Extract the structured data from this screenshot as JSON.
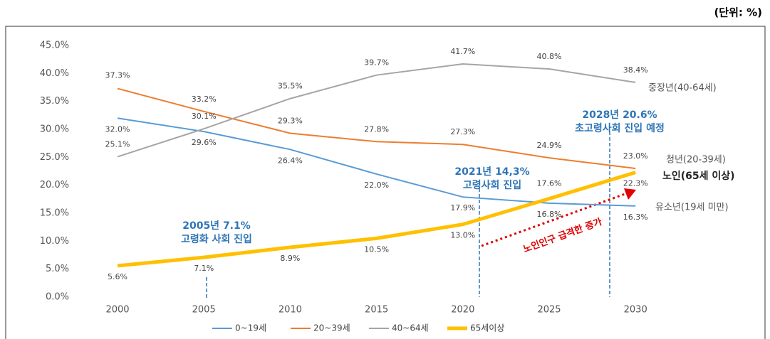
{
  "chart_data": {
    "type": "line",
    "unit_label": "(단위: %)",
    "categories": [
      "2000",
      "2005",
      "2010",
      "2015",
      "2020",
      "2025",
      "2030"
    ],
    "ylim": [
      0,
      45
    ],
    "yticks": [
      {
        "value": 0,
        "label": "0.0%"
      },
      {
        "value": 5,
        "label": "5.0%"
      },
      {
        "value": 10,
        "label": "10.0%"
      },
      {
        "value": 15,
        "label": "15.0%"
      },
      {
        "value": 20,
        "label": "20.0%"
      },
      {
        "value": 25,
        "label": "25.0%"
      },
      {
        "value": 30,
        "label": "30.0%"
      },
      {
        "value": 35,
        "label": "35.0%"
      },
      {
        "value": 40,
        "label": "40.0%"
      },
      {
        "value": 45,
        "label": "45.0%"
      }
    ],
    "grid": false,
    "legend": "bottom",
    "series": [
      {
        "name": "0~19세",
        "end_label": "유소년(19세 미만)",
        "color": "#5b9bd5",
        "values": [
          32.0,
          29.6,
          26.4,
          22.0,
          17.9,
          16.8,
          16.3
        ],
        "value_labels": [
          "32.0%",
          "29.6%",
          "26.4%",
          "22.0%",
          "17.9%",
          "16.8%",
          "16.3%"
        ]
      },
      {
        "name": "20~39세",
        "end_label": "청년(20-39세)",
        "color": "#ed7d31",
        "values": [
          37.3,
          33.2,
          29.3,
          27.8,
          27.3,
          24.9,
          23.0
        ],
        "value_labels": [
          "37.3%",
          "33.2%",
          "29.3%",
          "27.8%",
          "27.3%",
          "24.9%",
          "23.0%"
        ]
      },
      {
        "name": "40~64세",
        "end_label": "중장년(40-64세)",
        "color": "#a5a5a5",
        "values": [
          25.1,
          30.1,
          35.5,
          39.7,
          41.7,
          40.8,
          38.4
        ],
        "value_labels": [
          "25.1%",
          "30.1%",
          "35.5%",
          "39.7%",
          "41.7%",
          "40.8%",
          "38.4%"
        ]
      },
      {
        "name": "65세이상",
        "end_label": "노인(65세 이상)",
        "color": "#ffc000",
        "values": [
          5.6,
          7.1,
          8.9,
          10.5,
          13.0,
          17.6,
          22.3
        ],
        "value_labels": [
          "5.6%",
          "7.1%",
          "8.9%",
          "10.5%",
          "13.0%",
          "17.6%",
          "22.3%"
        ]
      }
    ],
    "annotations": [
      {
        "lines": [
          "2005년 7.1%",
          "고령화 사회 진입"
        ]
      },
      {
        "lines": [
          "2021년 14,3%",
          "고령사회 진입"
        ]
      },
      {
        "lines": [
          "2028년 20.6%",
          "초고령사회 진입 예정"
        ]
      },
      {
        "lines": [
          "노인인구 급격한 증가"
        ]
      }
    ]
  }
}
